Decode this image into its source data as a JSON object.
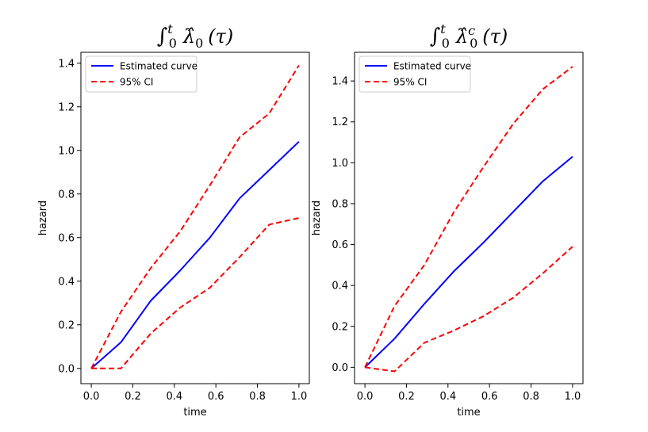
{
  "colors": {
    "estimate": "#0000ff",
    "ci": "#ff0000",
    "axes": "#000000"
  },
  "chart_data": [
    {
      "type": "line",
      "title": "∫_0^t λ̂_0 (τ)",
      "title_parts": {
        "integral": "∫",
        "upper": "t",
        "lower": "0",
        "lambda": "λ̂",
        "sub": "0",
        "sup": "",
        "arg": "(τ)"
      },
      "xlabel": "time",
      "ylabel": "hazard",
      "xlim": [
        -0.05,
        1.05
      ],
      "ylim": [
        -0.07,
        1.45
      ],
      "xticks": [
        0.0,
        0.2,
        0.4,
        0.6,
        0.8,
        1.0
      ],
      "xtick_labels": [
        "0.0",
        "0.2",
        "0.4",
        "0.6",
        "0.8",
        "1.0"
      ],
      "yticks": [
        0.0,
        0.2,
        0.4,
        0.6,
        0.8,
        1.0,
        1.2,
        1.4
      ],
      "ytick_labels": [
        "0.0",
        "0.2",
        "0.4",
        "0.6",
        "0.8",
        "1.0",
        "1.2",
        "1.4"
      ],
      "legend": {
        "position": "top-left",
        "entries": [
          "Estimated curve",
          "95% CI"
        ]
      },
      "x": [
        0.0,
        0.143,
        0.286,
        0.429,
        0.571,
        0.714,
        0.857,
        1.0
      ],
      "series": [
        {
          "name": "Estimated curve",
          "style": "solid",
          "values": [
            0.0,
            0.12,
            0.31,
            0.45,
            0.6,
            0.78,
            0.91,
            1.04
          ]
        },
        {
          "name": "95% CI (upper)",
          "style": "dashed",
          "values": [
            0.0,
            0.26,
            0.46,
            0.63,
            0.84,
            1.06,
            1.17,
            1.39
          ]
        },
        {
          "name": "95% CI (lower)",
          "style": "dashed",
          "values": [
            0.0,
            0.0,
            0.16,
            0.28,
            0.37,
            0.51,
            0.66,
            0.69
          ]
        }
      ]
    },
    {
      "type": "line",
      "title": "∫_0^t λ̂_0^c (τ)",
      "title_parts": {
        "integral": "∫",
        "upper": "t",
        "lower": "0",
        "lambda": "λ̂",
        "sub": "0",
        "sup": "c",
        "arg": "(τ)"
      },
      "xlabel": "time",
      "ylabel": "hazard",
      "xlim": [
        -0.05,
        1.05
      ],
      "ylim": [
        -0.08,
        1.54
      ],
      "xticks": [
        0.0,
        0.2,
        0.4,
        0.6,
        0.8,
        1.0
      ],
      "xtick_labels": [
        "0.0",
        "0.2",
        "0.4",
        "0.6",
        "0.8",
        "1.0"
      ],
      "yticks": [
        0.0,
        0.2,
        0.4,
        0.6,
        0.8,
        1.0,
        1.2,
        1.4
      ],
      "ytick_labels": [
        "0.0",
        "0.2",
        "0.4",
        "0.6",
        "0.8",
        "1.0",
        "1.2",
        "1.4"
      ],
      "legend": {
        "position": "top-left",
        "entries": [
          "Estimated curve",
          "95% CI"
        ]
      },
      "x": [
        0.0,
        0.143,
        0.286,
        0.429,
        0.571,
        0.714,
        0.857,
        1.0
      ],
      "series": [
        {
          "name": "Estimated curve",
          "style": "solid",
          "values": [
            0.0,
            0.14,
            0.31,
            0.47,
            0.61,
            0.76,
            0.91,
            1.03
          ]
        },
        {
          "name": "95% CI (upper)",
          "style": "dashed",
          "values": [
            0.0,
            0.3,
            0.5,
            0.76,
            0.98,
            1.19,
            1.36,
            1.47
          ]
        },
        {
          "name": "95% CI (lower)",
          "style": "dashed",
          "values": [
            0.0,
            -0.02,
            0.12,
            0.18,
            0.25,
            0.34,
            0.46,
            0.59
          ]
        }
      ]
    }
  ]
}
